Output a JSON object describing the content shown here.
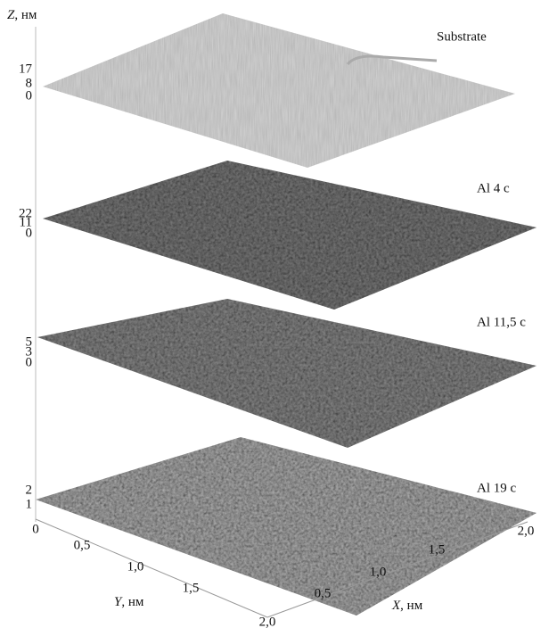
{
  "z_axis": {
    "label": "Z",
    "unit": ", нм"
  },
  "layers": [
    {
      "label": "Substrate",
      "ticks": [
        "17",
        "8",
        "0"
      ]
    },
    {
      "label": "Al 4 с",
      "ticks": [
        "22",
        "11",
        "0"
      ]
    },
    {
      "label": "Al 11,5 с",
      "ticks": [
        "5",
        "3",
        "0"
      ]
    },
    {
      "label": "Al 19 с",
      "ticks": [
        "2",
        "1"
      ]
    }
  ],
  "y_axis": {
    "label": "Y",
    "unit": ", нм",
    "ticks": [
      "0",
      "0,5",
      "1,0",
      "1,5",
      "2,0"
    ]
  },
  "x_axis": {
    "label": "X",
    "unit": ", нм",
    "ticks": [
      "0,5",
      "1,0",
      "1,5",
      "2,0"
    ]
  }
}
